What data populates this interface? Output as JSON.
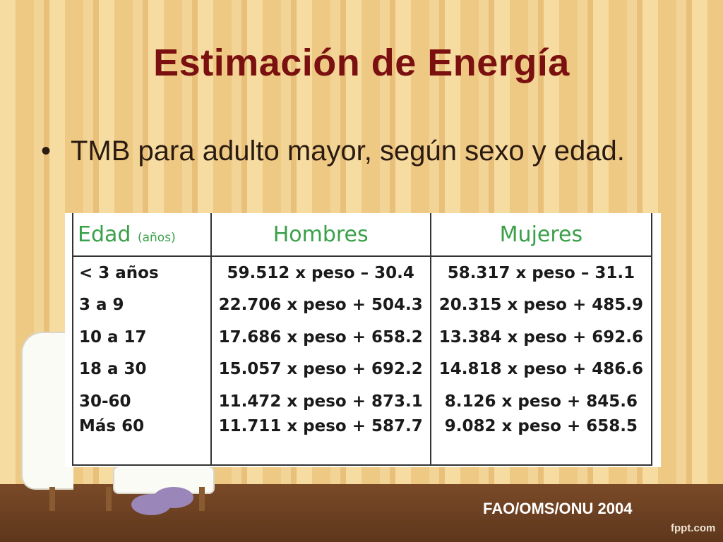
{
  "slide": {
    "title": "Estimación de Energía",
    "bullet": "TMB para adulto mayor, según sexo y edad.",
    "bullet_marker": "•",
    "source": "FAO/OMS/ONU 2004",
    "watermark": "fppt.com"
  },
  "table": {
    "headers": {
      "age": "Edad",
      "age_unit": "(años)",
      "men": "Hombres",
      "women": "Mujeres"
    },
    "rows": [
      {
        "age": "< 3 años",
        "men": "59.512 x peso – 30.4",
        "women": "58.317 x peso – 31.1"
      },
      {
        "age": "3 a 9",
        "men": "22.706 x peso + 504.3",
        "women": "20.315 x peso + 485.9"
      },
      {
        "age": "10 a 17",
        "men": "17.686 x peso + 658.2",
        "women": "13.384 x peso + 692.6"
      },
      {
        "age": "18 a 30",
        "men": "15.057 x peso + 692.2",
        "women": "14.818 x peso + 486.6"
      },
      {
        "age": "30-60",
        "men": "11.472 x peso + 873.1",
        "women": "8.126 x peso + 845.6"
      },
      {
        "age": "Más 60",
        "men": "11.711 x peso + 587.7",
        "women": "9.082 x peso + 658.5"
      }
    ]
  },
  "colors": {
    "title": "#7a1010",
    "header_text": "#3aa04a",
    "floor": "#6b4022"
  }
}
